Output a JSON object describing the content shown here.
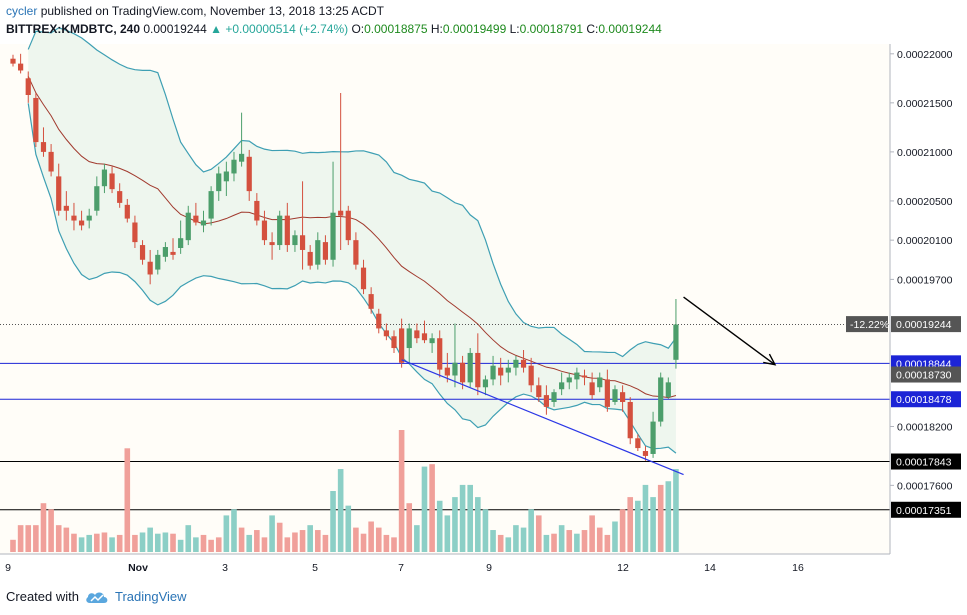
{
  "header": {
    "author": "cycler",
    "published": "published on TradingView.com, November 13, 2018 13:25 ACDT",
    "symbol": "BITTREX:KMDBTC, 240",
    "last": "0.00019244",
    "change": "+0.00000514 (+2.74%)",
    "o_label": "O:",
    "o_val": "0.00018875",
    "h_label": "H:",
    "h_val": "0.00019499",
    "l_label": "L:",
    "l_val": "0.00018791",
    "c_label": "C:",
    "c_val": "0.00019244"
  },
  "footer": {
    "created": "Created with",
    "brand": "TradingView"
  },
  "colors": {
    "up": "#4c9e6b",
    "down": "#d4503e",
    "vol_up": "#8ccfc6",
    "vol_down": "#f0a09a",
    "band": "#3e9fb3",
    "mid": "#a13a2e",
    "band_fill": "#eef6ee",
    "hline_blue": "#1c24d6",
    "trend": "#2b37e6"
  },
  "chart_data": {
    "type": "candlestick",
    "title": "BITTREX:KMDBTC, 240",
    "ylim": [
      0.000169,
      0.000221
    ],
    "y_ticks": [
      0.00022,
      0.000215,
      0.00021,
      0.000205,
      0.000201,
      0.000197,
      0.000182,
      0.000176
    ],
    "y_tick_labels": [
      "0.00022000",
      "0.00021500",
      "0.00021000",
      "0.00020500",
      "0.00020100",
      "0.00019700",
      "0.00018200",
      "0.00017600"
    ],
    "x_tick_labels": [
      "9",
      "Nov",
      "3",
      "5",
      "7",
      "9",
      "12",
      "14",
      "16"
    ],
    "price_labels": [
      {
        "value": 0.00019244,
        "text": "0.00019244",
        "style": "dark",
        "pct": "-12.22%"
      },
      {
        "value": 0.00018844,
        "text": "0.00018844",
        "style": "blue"
      },
      {
        "value": 0.0001873,
        "text": "0.00018730",
        "style": "dark"
      },
      {
        "value": 0.00018478,
        "text": "0.00018478",
        "style": "blue"
      },
      {
        "value": 0.00017843,
        "text": "0.00017843",
        "style": "black"
      },
      {
        "value": 0.00017351,
        "text": "0.00017351",
        "style": "black"
      }
    ],
    "horizontal_lines": [
      {
        "value": 0.00018844,
        "color": "blue"
      },
      {
        "value": 0.00018478,
        "color": "blue"
      },
      {
        "value": 0.00017843,
        "color": "black"
      },
      {
        "value": 0.00017351,
        "color": "black"
      }
    ],
    "candles": [
      [
        0.0002195,
        0.0002199,
        0.0002187,
        0.000219
      ],
      [
        0.000219,
        0.00022,
        0.000218,
        0.0002183
      ],
      [
        0.0002175,
        0.0002182,
        0.000215,
        0.0002158
      ],
      [
        0.0002155,
        0.000216,
        0.0002105,
        0.000211
      ],
      [
        0.000211,
        0.0002125,
        0.0002095,
        0.00021
      ],
      [
        0.00021,
        0.0002108,
        0.0002075,
        0.000208
      ],
      [
        0.0002075,
        0.0002088,
        0.0002035,
        0.000204
      ],
      [
        0.0002045,
        0.000206,
        0.000203,
        0.000204
      ],
      [
        0.0002035,
        0.0002048,
        0.000202,
        0.000203
      ],
      [
        0.000203,
        0.000204,
        0.000202,
        0.0002025
      ],
      [
        0.000203,
        0.0002042,
        0.0002022,
        0.0002035
      ],
      [
        0.000204,
        0.0002075,
        0.0002035,
        0.0002065
      ],
      [
        0.0002065,
        0.0002088,
        0.0002058,
        0.0002082
      ],
      [
        0.0002078,
        0.0002085,
        0.0002058,
        0.0002062
      ],
      [
        0.000206,
        0.0002068,
        0.0002043,
        0.0002048
      ],
      [
        0.0002046,
        0.0002052,
        0.0002028,
        0.0002032
      ],
      [
        0.0002028,
        0.0002035,
        0.0002002,
        0.0002008
      ],
      [
        0.0002005,
        0.000201,
        0.0001985,
        0.000199
      ],
      [
        0.0001988,
        0.0002,
        0.0001965,
        0.0001975
      ],
      [
        0.000198,
        0.0002,
        0.0001975,
        0.0001995
      ],
      [
        0.0001993,
        0.0002008,
        0.0001988,
        0.0002003
      ],
      [
        0.0001998,
        0.0002012,
        0.000199,
        0.0001995
      ],
      [
        0.0002002,
        0.000203,
        0.0001996,
        0.0002012
      ],
      [
        0.000201,
        0.0002045,
        0.0002005,
        0.0002038
      ],
      [
        0.0002035,
        0.0002048,
        0.0002025,
        0.0002028
      ],
      [
        0.0002025,
        0.000204,
        0.0002018,
        0.000203
      ],
      [
        0.0002032,
        0.0002065,
        0.0002025,
        0.000206
      ],
      [
        0.000206,
        0.0002085,
        0.000205,
        0.0002078
      ],
      [
        0.000207,
        0.000209,
        0.0002055,
        0.000208
      ],
      [
        0.0002078,
        0.00021,
        0.000207,
        0.0002092
      ],
      [
        0.000209,
        0.000214,
        0.0002085,
        0.0002098
      ],
      [
        0.0002095,
        0.0002102,
        0.000205,
        0.000206
      ],
      [
        0.000205,
        0.0002058,
        0.0002025,
        0.000203
      ],
      [
        0.000203,
        0.000204,
        0.0002005,
        0.000201
      ],
      [
        0.0002008,
        0.0002018,
        0.000199,
        0.0002005
      ],
      [
        0.0002005,
        0.000204,
        0.0002,
        0.0002035
      ],
      [
        0.0002035,
        0.0002048,
        0.0001998,
        0.0002005
      ],
      [
        0.0002005,
        0.000202,
        0.0001998,
        0.0002015
      ],
      [
        0.0002015,
        0.000207,
        0.000198,
        0.0002
      ],
      [
        0.0001998,
        0.0002005,
        0.000198,
        0.0001984
      ],
      [
        0.0001985,
        0.0002018,
        0.000198,
        0.000201
      ],
      [
        0.0002008,
        0.0002015,
        0.0001985,
        0.000199
      ],
      [
        0.000199,
        0.000209,
        0.0001983,
        0.0002038
      ],
      [
        0.000204,
        0.000216,
        0.0002,
        0.0002035
      ],
      [
        0.000204,
        0.0002045,
        0.0002005,
        0.000201
      ],
      [
        0.000201,
        0.0002018,
        0.000198,
        0.0001985
      ],
      [
        0.0001982,
        0.000199,
        0.0001955,
        0.000196
      ],
      [
        0.0001955,
        0.0001962,
        0.0001935,
        0.000194
      ],
      [
        0.0001935,
        0.000194,
        0.0001915,
        0.000192
      ],
      [
        0.0001918,
        0.0001925,
        0.0001908,
        0.0001912
      ],
      [
        0.0001912,
        0.0001918,
        0.0001895,
        0.00019
      ],
      [
        0.000192,
        0.000193,
        0.000188,
        0.0001885
      ],
      [
        0.00019,
        0.0001925,
        0.0001885,
        0.000192
      ],
      [
        0.0001918,
        0.0001925,
        0.0001905,
        0.000191
      ],
      [
        0.0001915,
        0.0001928,
        0.0001905,
        0.0001908
      ],
      [
        0.0001905,
        0.0001915,
        0.0001895,
        0.000191
      ],
      [
        0.000191,
        0.0001918,
        0.000187,
        0.0001878
      ],
      [
        0.000188,
        0.0001895,
        0.0001865,
        0.0001872
      ],
      [
        0.0001872,
        0.0001925,
        0.000186,
        0.0001885
      ],
      [
        0.0001885,
        0.0001892,
        0.0001858,
        0.0001865
      ],
      [
        0.0001865,
        0.00019,
        0.000186,
        0.0001895
      ],
      [
        0.0001895,
        0.0001915,
        0.0001852,
        0.000186
      ],
      [
        0.000186,
        0.0001872,
        0.0001852,
        0.0001868
      ],
      [
        0.0001868,
        0.0001892,
        0.0001862,
        0.0001882
      ],
      [
        0.000188,
        0.000189,
        0.0001862,
        0.0001872
      ],
      [
        0.0001875,
        0.0001888,
        0.0001865,
        0.000188
      ],
      [
        0.000188,
        0.0001892,
        0.0001872,
        0.0001888
      ],
      [
        0.0001888,
        0.0001898,
        0.0001875,
        0.000188
      ],
      [
        0.0001882,
        0.000189,
        0.0001855,
        0.0001862
      ],
      [
        0.0001862,
        0.000187,
        0.0001845,
        0.000185
      ],
      [
        0.0001852,
        0.0001862,
        0.0001832,
        0.000184
      ],
      [
        0.0001845,
        0.0001858,
        0.000184,
        0.0001855
      ],
      [
        0.0001858,
        0.0001875,
        0.0001852,
        0.0001865
      ],
      [
        0.0001865,
        0.0001875,
        0.0001858,
        0.000187
      ],
      [
        0.0001868,
        0.000188,
        0.0001858,
        0.0001875
      ],
      [
        0.0001872,
        0.0001878,
        0.0001862,
        0.000187
      ],
      [
        0.0001865,
        0.0001875,
        0.0001848,
        0.0001852
      ],
      [
        0.000186,
        0.0001875,
        0.0001855,
        0.000187
      ],
      [
        0.0001868,
        0.0001878,
        0.0001835,
        0.000184
      ],
      [
        0.0001845,
        0.0001862,
        0.0001842,
        0.0001858
      ],
      [
        0.0001855,
        0.0001862,
        0.0001835,
        0.0001845
      ],
      [
        0.0001845,
        0.000185,
        0.0001802,
        0.0001808
      ],
      [
        0.0001808,
        0.0001812,
        0.0001795,
        0.0001798
      ],
      [
        0.0001795,
        0.00018,
        0.0001785,
        0.000179
      ],
      [
        0.0001792,
        0.0001835,
        0.0001788,
        0.0001825
      ],
      [
        0.0001825,
        0.0001875,
        0.000182,
        0.000187
      ],
      [
        0.000185,
        0.000187,
        0.0001848,
        0.0001865
      ],
      [
        0.0001888,
        0.000195,
        0.0001879,
        0.0001924
      ]
    ],
    "volume": [
      [
        10,
        0
      ],
      [
        22,
        0
      ],
      [
        22,
        0
      ],
      [
        22,
        0
      ],
      [
        40,
        0
      ],
      [
        35,
        0
      ],
      [
        22,
        0
      ],
      [
        20,
        0
      ],
      [
        15,
        0
      ],
      [
        12,
        1
      ],
      [
        14,
        1
      ],
      [
        15,
        0
      ],
      [
        16,
        0
      ],
      [
        12,
        1
      ],
      [
        14,
        0
      ],
      [
        85,
        0
      ],
      [
        14,
        0
      ],
      [
        16,
        1
      ],
      [
        20,
        1
      ],
      [
        15,
        1
      ],
      [
        16,
        1
      ],
      [
        15,
        0
      ],
      [
        10,
        1
      ],
      [
        22,
        1
      ],
      [
        12,
        1
      ],
      [
        14,
        0
      ],
      [
        10,
        0
      ],
      [
        12,
        0
      ],
      [
        30,
        1
      ],
      [
        35,
        1
      ],
      [
        20,
        0
      ],
      [
        14,
        1
      ],
      [
        18,
        0
      ],
      [
        12,
        0
      ],
      [
        30,
        1
      ],
      [
        24,
        0
      ],
      [
        12,
        0
      ],
      [
        16,
        0
      ],
      [
        18,
        0
      ],
      [
        22,
        1
      ],
      [
        18,
        0
      ],
      [
        14,
        0
      ],
      [
        50,
        1
      ],
      [
        68,
        1
      ],
      [
        38,
        1
      ],
      [
        20,
        0
      ],
      [
        15,
        0
      ],
      [
        25,
        0
      ],
      [
        20,
        0
      ],
      [
        14,
        0
      ],
      [
        12,
        0
      ],
      [
        100,
        0
      ],
      [
        40,
        0
      ],
      [
        22,
        1
      ],
      [
        70,
        1
      ],
      [
        72,
        0
      ],
      [
        42,
        1
      ],
      [
        30,
        1
      ],
      [
        45,
        1
      ],
      [
        55,
        1
      ],
      [
        55,
        1
      ],
      [
        45,
        1
      ],
      [
        35,
        1
      ],
      [
        18,
        1
      ],
      [
        14,
        0
      ],
      [
        12,
        1
      ],
      [
        22,
        1
      ],
      [
        20,
        1
      ],
      [
        35,
        1
      ],
      [
        30,
        0
      ],
      [
        14,
        1
      ],
      [
        15,
        0
      ],
      [
        22,
        1
      ],
      [
        18,
        0
      ],
      [
        15,
        1
      ],
      [
        18,
        0
      ],
      [
        30,
        0
      ],
      [
        20,
        0
      ],
      [
        14,
        0
      ],
      [
        25,
        1
      ],
      [
        35,
        0
      ],
      [
        45,
        0
      ],
      [
        42,
        1
      ],
      [
        55,
        1
      ],
      [
        45,
        1
      ],
      [
        55,
        0
      ],
      [
        58,
        1
      ],
      [
        68,
        1
      ]
    ],
    "trendline": {
      "from": [
        51,
        0.0001888
      ],
      "to": [
        88,
        0.0001771
      ]
    },
    "arrow": {
      "from": [
        88,
        0.0001952
      ],
      "to": [
        100,
        0.0001883
      ]
    }
  }
}
